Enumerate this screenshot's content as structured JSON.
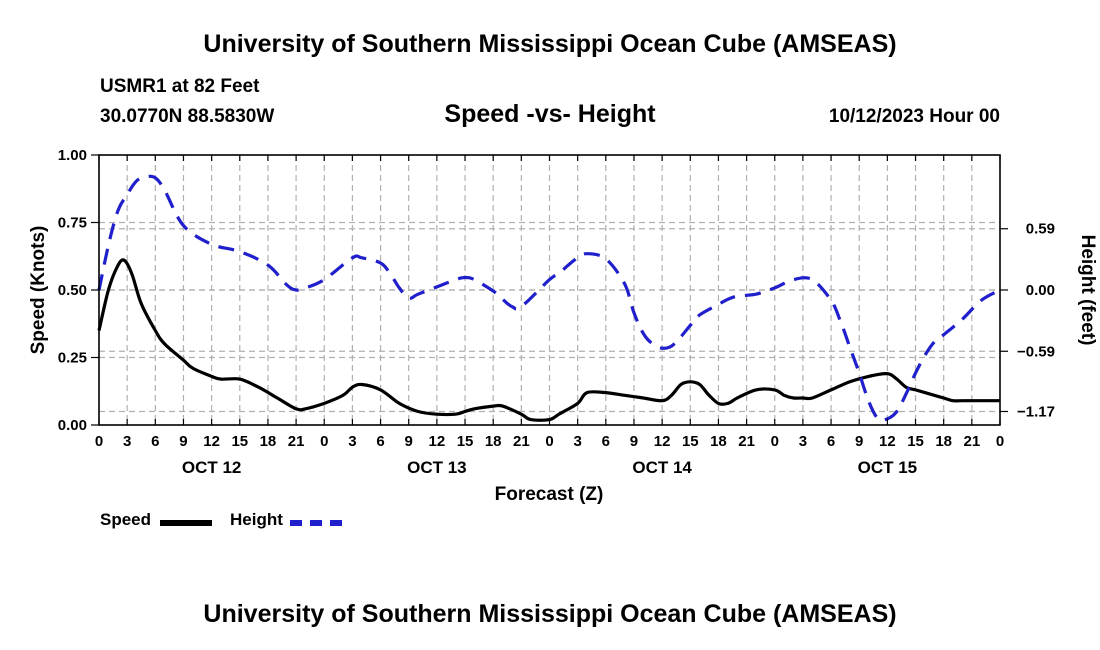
{
  "header": {
    "title": "University of Southern Mississippi Ocean Cube (AMSEAS)",
    "station": "USMR1 at 82 Feet",
    "coords": "30.0770N  88.5830W",
    "date": "10/12/2023 Hour 00",
    "footer_title": "University of Southern Mississippi Ocean Cube (AMSEAS)"
  },
  "colors": {
    "speed": "#000000",
    "height": "#1f1fcc",
    "grid": "#b0b0b0"
  },
  "chart_data": {
    "type": "line",
    "title": "Speed -vs- Height",
    "xlabel": "Forecast (Z)",
    "ylabel": "Speed (Knots)",
    "y2label": "Height (feet)",
    "xlim": [
      0,
      96
    ],
    "ylim": [
      0,
      1
    ],
    "y2lim": [
      -1.3,
      1.3
    ],
    "x_tick_labels": [
      "0",
      "3",
      "6",
      "9",
      "12",
      "15",
      "18",
      "21",
      "0",
      "3",
      "6",
      "9",
      "12",
      "15",
      "18",
      "21",
      "0",
      "3",
      "6",
      "9",
      "12",
      "15",
      "18",
      "21",
      "0",
      "3",
      "6",
      "9",
      "12",
      "15",
      "18",
      "21",
      "0"
    ],
    "day_labels": [
      {
        "x": 12,
        "label": "OCT 12"
      },
      {
        "x": 36,
        "label": "OCT 13"
      },
      {
        "x": 60,
        "label": "OCT 14"
      },
      {
        "x": 84,
        "label": "OCT 15"
      }
    ],
    "y_ticks": [
      0,
      0.25,
      0.5,
      0.75,
      1.0
    ],
    "y_tick_labels": [
      "0.00",
      "0.25",
      "0.50",
      "0.75",
      "1.00"
    ],
    "y2_ticks": [
      -1.17,
      -0.59,
      0.0,
      0.59
    ],
    "y2_tick_labels": [
      "−1.17",
      "−0.59",
      "0.00",
      "0.59"
    ],
    "series": [
      {
        "name": "Speed",
        "axis": "left",
        "style": "solid",
        "x": [
          0,
          1,
          2,
          2.7,
          3.5,
          4.5,
          6,
          7,
          9,
          10,
          12,
          13,
          15,
          17,
          19,
          21,
          22,
          24,
          26,
          27,
          28,
          30,
          32,
          34,
          36,
          38,
          39,
          40,
          42,
          43,
          45,
          46,
          48,
          49,
          51,
          52,
          54,
          56,
          58,
          60,
          61,
          62,
          63,
          64,
          65,
          66,
          67,
          68,
          70,
          72,
          73,
          74,
          75,
          76,
          78,
          80,
          82,
          84,
          85,
          86,
          87,
          88,
          89,
          90,
          91,
          92,
          94,
          96
        ],
        "values": [
          0.35,
          0.5,
          0.59,
          0.61,
          0.56,
          0.45,
          0.35,
          0.3,
          0.24,
          0.21,
          0.18,
          0.17,
          0.17,
          0.14,
          0.1,
          0.06,
          0.06,
          0.08,
          0.11,
          0.14,
          0.15,
          0.13,
          0.08,
          0.05,
          0.04,
          0.04,
          0.05,
          0.06,
          0.07,
          0.07,
          0.04,
          0.02,
          0.02,
          0.04,
          0.08,
          0.12,
          0.12,
          0.11,
          0.1,
          0.09,
          0.11,
          0.15,
          0.16,
          0.15,
          0.11,
          0.08,
          0.08,
          0.1,
          0.13,
          0.13,
          0.11,
          0.1,
          0.1,
          0.1,
          0.13,
          0.16,
          0.18,
          0.19,
          0.17,
          0.14,
          0.13,
          0.12,
          0.11,
          0.1,
          0.09,
          0.09,
          0.09,
          0.09
        ]
      },
      {
        "name": "Height",
        "axis": "right",
        "style": "dashed",
        "x": [
          0,
          1,
          2,
          3,
          4,
          5,
          6,
          7,
          9,
          12,
          15,
          18,
          20,
          21,
          22,
          24,
          27,
          28,
          30,
          31,
          32,
          33,
          34,
          36,
          38,
          39,
          40,
          42,
          43,
          44,
          45,
          48,
          49,
          50,
          51,
          52,
          54,
          56,
          57,
          58,
          59,
          60,
          61,
          62,
          63,
          64,
          66,
          67,
          68,
          70,
          72,
          74,
          76,
          78,
          79,
          80,
          81,
          82,
          83,
          84,
          85,
          86,
          87,
          88,
          89,
          90,
          92,
          94,
          96
        ],
        "values": [
          0.0,
          0.43,
          0.76,
          0.92,
          1.05,
          1.09,
          1.08,
          0.96,
          0.62,
          0.44,
          0.37,
          0.24,
          0.05,
          0.0,
          0.02,
          0.1,
          0.31,
          0.31,
          0.26,
          0.16,
          0.02,
          -0.08,
          -0.04,
          0.03,
          0.1,
          0.12,
          0.1,
          -0.01,
          -0.09,
          -0.16,
          -0.16,
          0.1,
          0.16,
          0.24,
          0.31,
          0.35,
          0.3,
          0.06,
          -0.22,
          -0.42,
          -0.52,
          -0.56,
          -0.54,
          -0.45,
          -0.34,
          -0.24,
          -0.14,
          -0.09,
          -0.06,
          -0.04,
          0.02,
          0.1,
          0.1,
          -0.1,
          -0.3,
          -0.55,
          -0.8,
          -1.07,
          -1.24,
          -1.24,
          -1.17,
          -1.0,
          -0.8,
          -0.63,
          -0.5,
          -0.43,
          -0.28,
          -0.1,
          0.0
        ]
      }
    ],
    "legend": [
      {
        "name": "Speed",
        "label": "Speed"
      },
      {
        "name": "Height",
        "label": "Height"
      }
    ]
  }
}
